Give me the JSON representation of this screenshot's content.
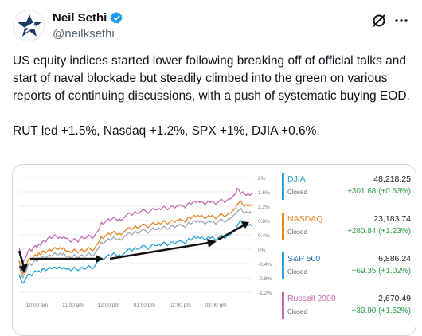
{
  "author": {
    "name": "Neil Sethi",
    "handle": "@neilksethi"
  },
  "icons": {
    "avatar": "star-logo-icon",
    "verified": "verified-badge-icon",
    "grok": "grok-icon",
    "more": "more-options-icon"
  },
  "colors": {
    "verified": "#1d9bf0",
    "djia": "#29a3d6",
    "nasdaq": "#e8821e",
    "sp500": "#9aa7b5",
    "russell": "#c36ab0",
    "positive": "#2e9e4a"
  },
  "tweet": {
    "paragraph1": "US equity indices started lower following breaking off of official talks and start of naval blockade but steadily climbed into the green on various reports of continuing discussions, with a push of systematic buying EOD.",
    "paragraph2": "RUT led +1.5%, Nasdaq +1.2%, SPX +1%, DJIA +0.6%."
  },
  "legend": [
    {
      "name": "DJIA",
      "status": "Closed",
      "value": "48,218.25",
      "change": "+301.68 (+0.63%)",
      "color": "#29a3d6"
    },
    {
      "name": "NASDAQ",
      "status": "Closed",
      "value": "23,183.74",
      "change": "+280.84 (+1.23%)",
      "color": "#e8821e"
    },
    {
      "name": "S&P 500",
      "status": "Closed",
      "value": "6,886.24",
      "change": "+69.35 (+1.02%)",
      "color": "#9aa7b5"
    },
    {
      "name": "Russell 2000",
      "status": "Closed",
      "value": "2,670.49",
      "change": "+39.90 (+1.52%)",
      "color": "#c36ab0"
    }
  ],
  "chart_data": {
    "type": "line",
    "x_ticks": [
      "10:00 am",
      "11:00 am",
      "12:00 pm",
      "01:00 pm",
      "02:00 pm",
      "03:00 pm"
    ],
    "y_ticks": [
      "2%",
      "1.6%",
      "1.2%",
      "0.8%",
      "0.4%",
      "0%",
      "-0.4%",
      "-0.8%",
      "-1.2%"
    ],
    "ylim": [
      -1.2,
      2.0
    ],
    "x": [
      0,
      0.05,
      0.1,
      0.15,
      0.2,
      0.25,
      0.3,
      0.35,
      0.4,
      0.45,
      0.5,
      0.55,
      0.6,
      0.65,
      0.7,
      0.75,
      0.8,
      0.85,
      0.9,
      0.95,
      1.0,
      1.05,
      1.1,
      1.15,
      1.2,
      1.25,
      1.3,
      1.35,
      1.4,
      1.45,
      1.5,
      1.55,
      1.6,
      1.65,
      1.7,
      1.75,
      1.8,
      1.85,
      1.9,
      1.95,
      2.0,
      2.05,
      2.1,
      2.15,
      2.2,
      2.25,
      2.3,
      2.35,
      2.4,
      2.45,
      2.5,
      2.55,
      2.6,
      2.65,
      2.7,
      2.75,
      2.8,
      2.85,
      2.9,
      2.95,
      3.0,
      3.05,
      3.1,
      3.15,
      3.2,
      3.25,
      3.3,
      3.35,
      3.4,
      3.45,
      3.5,
      3.55,
      3.6,
      3.65,
      3.7,
      3.75,
      3.8,
      3.85,
      3.9,
      3.95,
      4.0,
      4.05,
      4.1,
      4.15,
      4.2,
      4.25,
      4.3,
      4.35,
      4.4,
      4.45,
      4.5,
      4.55,
      4.6,
      4.65,
      4.7,
      4.75,
      4.8,
      4.85,
      4.9,
      4.95,
      5.0,
      5.05,
      5.1,
      5.15,
      5.2,
      5.25,
      5.3,
      5.35,
      5.4,
      5.45,
      5.5,
      5.55,
      5.6,
      5.65,
      5.7,
      5.75,
      5.8,
      5.85,
      5.9,
      5.95,
      6.0,
      6.05,
      6.1,
      6.15,
      6.2,
      6.25,
      6.3,
      6.35,
      6.4,
      6.45,
      6.5
    ],
    "series": [
      {
        "name": "Russell 2000",
        "color": "#c36ab0",
        "values": [
          0.05,
          -0.15,
          -0.35,
          -0.3,
          -0.2,
          -0.05,
          0.0,
          -0.05,
          0.05,
          0.1,
          0.05,
          0.15,
          0.1,
          0.2,
          0.25,
          0.2,
          0.3,
          0.35,
          0.3,
          0.35,
          0.4,
          0.35,
          0.3,
          0.35,
          0.3,
          0.35,
          0.3,
          0.3,
          0.25,
          0.2,
          0.25,
          0.3,
          0.25,
          0.2,
          0.3,
          0.35,
          0.3,
          0.3,
          0.35,
          0.4,
          0.35,
          0.3,
          0.35,
          0.45,
          0.5,
          0.6,
          0.75,
          0.7,
          0.75,
          0.8,
          0.85,
          0.8,
          0.85,
          0.9,
          0.85,
          0.8,
          0.85,
          0.8,
          0.85,
          0.9,
          0.95,
          1.0,
          1.0,
          0.95,
          1.0,
          1.05,
          1.0,
          1.0,
          1.05,
          1.1,
          1.1,
          1.05,
          1.0,
          1.05,
          1.1,
          1.15,
          1.1,
          1.1,
          1.15,
          1.1,
          1.15,
          1.2,
          1.15,
          1.1,
          1.15,
          1.2,
          1.2,
          1.15,
          1.2,
          1.2,
          1.25,
          1.2,
          1.2,
          1.15,
          1.25,
          1.3,
          1.25,
          1.3,
          1.35,
          1.3,
          1.35,
          1.3,
          1.35,
          1.3,
          1.25,
          1.3,
          1.35,
          1.3,
          1.35,
          1.3,
          1.25,
          1.3,
          1.35,
          1.4,
          1.35,
          1.3,
          1.35,
          1.4,
          1.4,
          1.45,
          1.5,
          1.55,
          1.7,
          1.65,
          1.55,
          1.6,
          1.55,
          1.5,
          1.55,
          1.5,
          1.55
        ]
      },
      {
        "name": "NASDAQ",
        "color": "#e8821e",
        "values": [
          -0.3,
          -0.55,
          -0.7,
          -0.6,
          -0.45,
          -0.3,
          -0.25,
          -0.3,
          -0.2,
          -0.15,
          -0.2,
          -0.1,
          -0.15,
          -0.05,
          -0.05,
          -0.1,
          -0.05,
          0.0,
          -0.05,
          0.0,
          0.05,
          0.0,
          0.0,
          0.05,
          0.0,
          0.05,
          -0.05,
          -0.05,
          -0.05,
          -0.1,
          -0.05,
          0.0,
          -0.05,
          -0.1,
          -0.05,
          0.0,
          -0.05,
          -0.05,
          0.0,
          0.05,
          0.0,
          -0.05,
          0.0,
          0.1,
          0.15,
          0.25,
          0.35,
          0.3,
          0.35,
          0.4,
          0.45,
          0.4,
          0.45,
          0.5,
          0.45,
          0.4,
          0.45,
          0.4,
          0.45,
          0.5,
          0.55,
          0.6,
          0.6,
          0.55,
          0.6,
          0.65,
          0.6,
          0.6,
          0.65,
          0.7,
          0.7,
          0.65,
          0.6,
          0.65,
          0.7,
          0.75,
          0.7,
          0.7,
          0.75,
          0.7,
          0.75,
          0.8,
          0.75,
          0.7,
          0.75,
          0.8,
          0.8,
          0.75,
          0.8,
          0.8,
          0.85,
          0.8,
          0.8,
          0.75,
          0.85,
          0.9,
          0.85,
          0.9,
          0.95,
          0.9,
          0.95,
          0.9,
          0.95,
          0.9,
          0.85,
          0.9,
          0.95,
          0.9,
          0.95,
          0.9,
          0.85,
          0.9,
          0.95,
          1.0,
          0.95,
          0.9,
          0.95,
          1.0,
          1.0,
          1.05,
          1.1,
          1.15,
          1.25,
          1.3,
          1.35,
          1.25,
          1.2,
          1.25,
          1.2,
          1.25,
          1.2
        ]
      },
      {
        "name": "S&P 500",
        "color": "#9aa7b5",
        "values": [
          -0.45,
          -0.65,
          -0.8,
          -0.7,
          -0.6,
          -0.45,
          -0.4,
          -0.45,
          -0.35,
          -0.3,
          -0.35,
          -0.25,
          -0.3,
          -0.2,
          -0.2,
          -0.25,
          -0.2,
          -0.15,
          -0.2,
          -0.15,
          -0.1,
          -0.15,
          -0.15,
          -0.1,
          -0.15,
          -0.1,
          -0.2,
          -0.2,
          -0.2,
          -0.25,
          -0.2,
          -0.15,
          -0.2,
          -0.25,
          -0.2,
          -0.15,
          -0.2,
          -0.2,
          -0.15,
          -0.1,
          -0.15,
          -0.2,
          -0.15,
          -0.05,
          0.0,
          0.1,
          0.2,
          0.15,
          0.2,
          0.25,
          0.3,
          0.25,
          0.3,
          0.35,
          0.3,
          0.25,
          0.3,
          0.25,
          0.3,
          0.35,
          0.4,
          0.45,
          0.45,
          0.4,
          0.45,
          0.5,
          0.45,
          0.45,
          0.5,
          0.55,
          0.55,
          0.5,
          0.45,
          0.5,
          0.55,
          0.6,
          0.55,
          0.55,
          0.6,
          0.55,
          0.6,
          0.65,
          0.6,
          0.55,
          0.6,
          0.65,
          0.65,
          0.6,
          0.65,
          0.65,
          0.7,
          0.65,
          0.65,
          0.6,
          0.7,
          0.75,
          0.7,
          0.75,
          0.8,
          0.75,
          0.8,
          0.75,
          0.8,
          0.75,
          0.7,
          0.75,
          0.8,
          0.75,
          0.8,
          0.75,
          0.7,
          0.75,
          0.8,
          0.85,
          0.8,
          0.75,
          0.8,
          0.85,
          0.85,
          0.9,
          0.95,
          1.0,
          1.05,
          1.1,
          1.15,
          1.05,
          1.0,
          1.05,
          1.0,
          1.05,
          1.0
        ]
      },
      {
        "name": "DJIA",
        "color": "#29a3d6",
        "values": [
          -0.7,
          -0.85,
          -0.95,
          -0.9,
          -0.8,
          -0.7,
          -0.7,
          -0.75,
          -0.65,
          -0.6,
          -0.65,
          -0.6,
          -0.65,
          -0.55,
          -0.55,
          -0.6,
          -0.55,
          -0.5,
          -0.55,
          -0.5,
          -0.5,
          -0.55,
          -0.5,
          -0.5,
          -0.55,
          -0.5,
          -0.55,
          -0.55,
          -0.55,
          -0.6,
          -0.55,
          -0.5,
          -0.55,
          -0.6,
          -0.55,
          -0.5,
          -0.55,
          -0.55,
          -0.5,
          -0.45,
          -0.5,
          -0.55,
          -0.5,
          -0.4,
          -0.35,
          -0.3,
          -0.25,
          -0.3,
          -0.25,
          -0.2,
          -0.15,
          -0.2,
          -0.15,
          -0.1,
          -0.15,
          -0.2,
          -0.15,
          -0.2,
          -0.15,
          -0.1,
          -0.05,
          0.0,
          0.0,
          -0.05,
          0.0,
          0.05,
          0.0,
          0.0,
          0.05,
          0.1,
          0.1,
          0.05,
          0.0,
          0.05,
          0.1,
          0.15,
          0.1,
          0.1,
          0.15,
          0.1,
          0.15,
          0.2,
          0.15,
          0.1,
          0.15,
          0.2,
          0.2,
          0.15,
          0.2,
          0.2,
          0.25,
          0.2,
          0.2,
          0.15,
          0.25,
          0.3,
          0.25,
          0.3,
          0.35,
          0.3,
          0.35,
          0.3,
          0.35,
          0.3,
          0.25,
          0.3,
          0.35,
          0.3,
          0.35,
          0.3,
          0.25,
          0.3,
          0.35,
          0.4,
          0.35,
          0.3,
          0.35,
          0.4,
          0.4,
          0.45,
          0.5,
          0.55,
          0.65,
          0.75,
          0.8,
          0.7,
          0.65,
          0.7,
          0.65,
          0.7,
          0.65
        ]
      }
    ]
  }
}
